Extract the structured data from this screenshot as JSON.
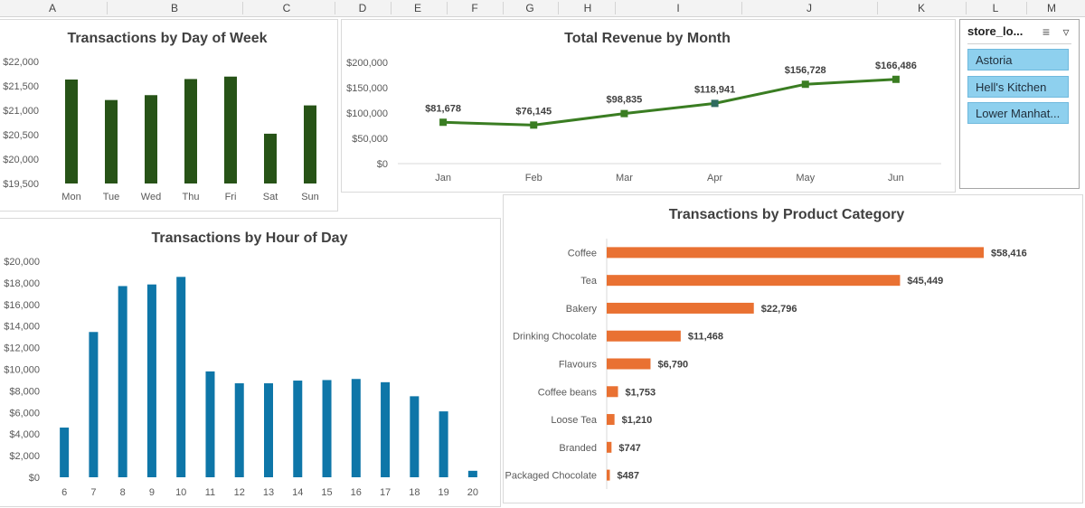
{
  "columns": [
    "A",
    "B",
    "C",
    "D",
    "E",
    "F",
    "G",
    "H",
    "I",
    "J",
    "K",
    "L",
    "M"
  ],
  "slicer": {
    "title": "store_lo...",
    "items": [
      "Astoria",
      "Hell's Kitchen",
      "Lower Manhat..."
    ]
  },
  "colors": {
    "dow_bar": "#275317",
    "revenue_line": "#3a7d22",
    "hour_bar": "#0e76a8",
    "category_bar": "#e97132"
  },
  "chart_data": [
    {
      "type": "bar",
      "title": "Transactions by Day of Week",
      "categories": [
        "Mon",
        "Tue",
        "Wed",
        "Thu",
        "Fri",
        "Sat",
        "Sun"
      ],
      "values": [
        21630,
        21210,
        21310,
        21640,
        21690,
        20520,
        21100
      ],
      "ylim": [
        19500,
        22000
      ],
      "yticks": [
        "$22,000",
        "$21,500",
        "$21,000",
        "$20,500",
        "$20,000",
        "$19,500"
      ]
    },
    {
      "type": "line",
      "title": "Total Revenue by Month",
      "categories": [
        "Jan",
        "Feb",
        "Mar",
        "Apr",
        "May",
        "Jun"
      ],
      "values": [
        81678,
        76145,
        98835,
        118941,
        156728,
        166486
      ],
      "labels": [
        "$81,678",
        "$76,145",
        "$98,835",
        "$118,941",
        "$156,728",
        "$166,486"
      ],
      "ylim": [
        0,
        200000
      ],
      "yticks": [
        "$200,000",
        "$150,000",
        "$100,000",
        "$50,000",
        "$0"
      ]
    },
    {
      "type": "bar",
      "title": "Transactions by Hour of Day",
      "categories": [
        "6",
        "7",
        "8",
        "9",
        "10",
        "11",
        "12",
        "13",
        "14",
        "15",
        "16",
        "17",
        "18",
        "19",
        "20"
      ],
      "values": [
        4600,
        13450,
        17700,
        17850,
        18550,
        9800,
        8700,
        8700,
        8950,
        9000,
        9100,
        8800,
        7500,
        6100,
        600
      ],
      "ylim": [
        0,
        20000
      ],
      "yticks": [
        "$20,000",
        "$18,000",
        "$16,000",
        "$14,000",
        "$12,000",
        "$10,000",
        "$8,000",
        "$6,000",
        "$4,000",
        "$2,000",
        "$0"
      ]
    },
    {
      "type": "bar",
      "orientation": "horizontal",
      "title": "Transactions by Product Category",
      "categories": [
        "Coffee",
        "Tea",
        "Bakery",
        "Drinking Chocolate",
        "Flavours",
        "Coffee beans",
        "Loose Tea",
        "Branded",
        "Packaged Chocolate"
      ],
      "values": [
        58416,
        45449,
        22796,
        11468,
        6790,
        1753,
        1210,
        747,
        487
      ],
      "labels": [
        "$58,416",
        "$45,449",
        "$22,796",
        "$11,468",
        "$6,790",
        "$1,753",
        "$1,210",
        "$747",
        "$487"
      ]
    }
  ]
}
